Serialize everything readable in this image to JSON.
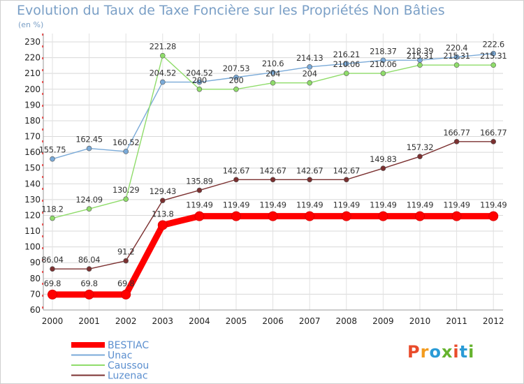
{
  "header": {
    "title": "Evolution du Taux de Taxe Foncière sur les Propriétés Non Bâties",
    "subtitle": "(en %)"
  },
  "logo": {
    "text": "Proxiti",
    "colors": [
      "#e94b2b",
      "#f39b1e",
      "#2a9bd6",
      "#65b32e",
      "#e94b2b",
      "#2a9bd6",
      "#65b32e"
    ]
  },
  "chart_data": {
    "type": "line",
    "x": [
      "2000",
      "2001",
      "2002",
      "2003",
      "2004",
      "2005",
      "2006",
      "2007",
      "2008",
      "2009",
      "2010",
      "2011",
      "2012"
    ],
    "ylim": [
      60,
      230
    ],
    "yticks": [
      60,
      70,
      80,
      90,
      100,
      110,
      120,
      130,
      140,
      150,
      160,
      170,
      180,
      190,
      200,
      210,
      220,
      230
    ],
    "grid": true,
    "legend": "bottom-left",
    "series": [
      {
        "name": "BESTIAC",
        "color": "#ff0000",
        "values": [
          69.8,
          69.8,
          69.8,
          113.8,
          119.49,
          119.49,
          119.49,
          119.49,
          119.49,
          119.49,
          119.49,
          119.49,
          119.49
        ],
        "labels": [
          "69.8",
          "69.8",
          "69.8",
          "113.8",
          "119.49",
          "119.49",
          "119.49",
          "119.49",
          "119.49",
          "119.49",
          "119.49",
          "119.49",
          "119.49"
        ]
      },
      {
        "name": "Unac",
        "color": "#7aaad8",
        "values": [
          155.75,
          162.45,
          160.52,
          204.52,
          204.52,
          207.53,
          210.6,
          214.13,
          216.21,
          218.37,
          218.39,
          220.4,
          222.6
        ],
        "labels": [
          "155.75",
          "162.45",
          "160.52",
          "204.52",
          "204.52",
          "207.53",
          "210.6",
          "214.13",
          "216.21",
          "218.37",
          "218.39",
          "220.4",
          "222.6"
        ]
      },
      {
        "name": "Caussou",
        "color": "#8fdc6a",
        "values": [
          118.2,
          124.09,
          130.29,
          221.28,
          200,
          200,
          204,
          204,
          210.06,
          210.06,
          215.31,
          215.31,
          215.31
        ],
        "labels": [
          "118.2",
          "124.09",
          "130.29",
          "221.28",
          "200",
          "200",
          "204",
          "204",
          "210.06",
          "210.06",
          "215.31",
          "215.31",
          "215.31"
        ]
      },
      {
        "name": "Luzenac",
        "color": "#7b3030",
        "values": [
          86.04,
          86.04,
          91.2,
          129.43,
          135.89,
          142.67,
          142.67,
          142.67,
          142.67,
          149.83,
          157.32,
          166.77,
          166.77
        ],
        "labels": [
          "86.04",
          "86.04",
          "91.2",
          "129.43",
          "135.89",
          "142.67",
          "142.67",
          "142.67",
          "142.67",
          "149.83",
          "157.32",
          "166.77",
          "166.77"
        ]
      }
    ]
  }
}
